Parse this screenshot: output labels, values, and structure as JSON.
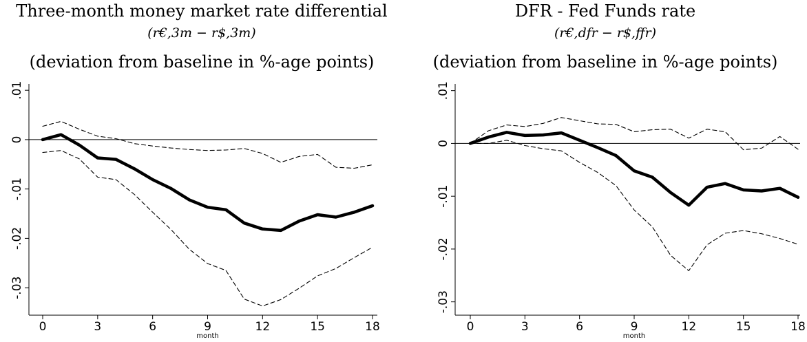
{
  "chart_data": [
    {
      "type": "line",
      "title": "Three-month money market rate differential",
      "subtitle": "(r€,3m − r$,3m)",
      "subtitle2": "(deviation from baseline in %-age points)",
      "xlabel": "month",
      "ylabel": "",
      "xlim": [
        0,
        18
      ],
      "ylim": [
        -0.035,
        0.011
      ],
      "xticks": [
        0,
        3,
        6,
        9,
        12,
        15,
        18
      ],
      "xtick_labels": [
        "0",
        "3",
        "6",
        "9",
        "12",
        "15",
        "18"
      ],
      "yticks": [
        0.01,
        0,
        -0.01,
        -0.02,
        -0.03
      ],
      "ytick_labels": [
        ".01",
        "0",
        "-.01",
        "-.02",
        "-.03"
      ],
      "reference_line": 0,
      "grid": false,
      "x": [
        0,
        1,
        2,
        3,
        4,
        5,
        6,
        7,
        8,
        9,
        10,
        11,
        12,
        13,
        14,
        15,
        16,
        17,
        18
      ],
      "series": [
        {
          "role": "estimate",
          "style": "solid-thick",
          "values": [
            0.0,
            0.001,
            -0.0011,
            -0.0037,
            -0.004,
            -0.0059,
            -0.0081,
            -0.0099,
            -0.0122,
            -0.0137,
            -0.0142,
            -0.0169,
            -0.0181,
            -0.0184,
            -0.0165,
            -0.0152,
            -0.0157,
            -0.0147,
            -0.0134
          ]
        },
        {
          "role": "upper-band",
          "style": "dashed",
          "values": [
            0.0027,
            0.0037,
            0.0021,
            0.0007,
            0.0002,
            -0.0008,
            -0.0013,
            -0.0017,
            -0.002,
            -0.0022,
            -0.0021,
            -0.0018,
            -0.0028,
            -0.0046,
            -0.0034,
            -0.003,
            -0.0056,
            -0.0058,
            -0.0051
          ]
        },
        {
          "role": "lower-band",
          "style": "dashed",
          "values": [
            -0.0026,
            -0.0022,
            -0.0039,
            -0.0076,
            -0.0081,
            -0.0111,
            -0.0147,
            -0.0182,
            -0.0222,
            -0.0251,
            -0.0265,
            -0.0323,
            -0.0337,
            -0.0324,
            -0.0301,
            -0.0276,
            -0.0261,
            -0.0239,
            -0.0218
          ]
        }
      ]
    },
    {
      "type": "line",
      "title": "DFR - Fed Funds rate",
      "subtitle": "(r€,dfr − r$,ffr)",
      "subtitle2": "(deviation from baseline in %-age points)",
      "xlabel": "month",
      "ylabel": "",
      "xlim": [
        0,
        18
      ],
      "ylim": [
        -0.032,
        0.011
      ],
      "xticks": [
        0,
        3,
        6,
        9,
        12,
        15,
        18
      ],
      "xtick_labels": [
        "0",
        "3",
        "6",
        "9",
        "12",
        "15",
        "18"
      ],
      "yticks": [
        0.01,
        0,
        -0.01,
        -0.02,
        -0.03
      ],
      "ytick_labels": [
        ".01",
        "0",
        "-.01",
        "-.02",
        "-.03"
      ],
      "reference_line": 0,
      "grid": false,
      "x": [
        0,
        1,
        2,
        3,
        4,
        5,
        6,
        7,
        8,
        9,
        10,
        11,
        12,
        13,
        14,
        15,
        16,
        17,
        18
      ],
      "series": [
        {
          "role": "estimate",
          "style": "solid-thick",
          "values": [
            0.0,
            0.0012,
            0.0021,
            0.0015,
            0.0016,
            0.002,
            0.0006,
            -0.0008,
            -0.0023,
            -0.0052,
            -0.0064,
            -0.0093,
            -0.0117,
            -0.0083,
            -0.0076,
            -0.0088,
            -0.009,
            -0.0085,
            -0.0102
          ]
        },
        {
          "role": "upper-band",
          "style": "dashed",
          "values": [
            0.0,
            0.0024,
            0.0035,
            0.0032,
            0.0038,
            0.0049,
            0.0043,
            0.0037,
            0.0036,
            0.0022,
            0.0026,
            0.0027,
            0.001,
            0.0027,
            0.0022,
            -0.0012,
            -0.0009,
            0.0013,
            -0.0011
          ]
        },
        {
          "role": "lower-band",
          "style": "dashed",
          "values": [
            0.0,
            0.0,
            0.0006,
            -0.0004,
            -0.001,
            -0.0014,
            -0.0036,
            -0.0055,
            -0.008,
            -0.0126,
            -0.0158,
            -0.0212,
            -0.0241,
            -0.0192,
            -0.017,
            -0.0165,
            -0.0171,
            -0.018,
            -0.0191
          ]
        }
      ]
    }
  ]
}
